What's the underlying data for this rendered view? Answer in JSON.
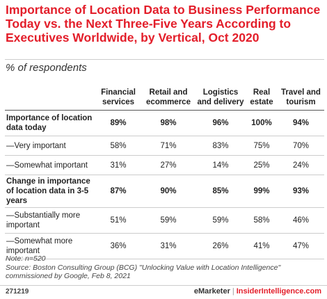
{
  "chart_data": {
    "type": "table",
    "title": "Importance of Location Data to Business Performance Today vs. the Next Three-Five Years According to Executives Worldwide, by Vertical, Oct 2020",
    "subtitle": "% of respondents",
    "columns": [
      "Financial services",
      "Retail and ecommerce",
      "Logistics and delivery",
      "Real estate",
      "Travel and tourism"
    ],
    "rows": [
      {
        "label": "Importance of location data today",
        "values": [
          "89%",
          "98%",
          "96%",
          "100%",
          "94%"
        ],
        "emphasis": true
      },
      {
        "label": "—Very important",
        "values": [
          "58%",
          "71%",
          "83%",
          "75%",
          "70%"
        ],
        "emphasis": false
      },
      {
        "label": "—Somewhat important",
        "values": [
          "31%",
          "27%",
          "14%",
          "25%",
          "24%"
        ],
        "emphasis": false
      },
      {
        "label": "Change in importance of location data in 3-5 years",
        "values": [
          "87%",
          "90%",
          "85%",
          "99%",
          "93%"
        ],
        "emphasis": true
      },
      {
        "label": "—Substantially more important",
        "values": [
          "51%",
          "59%",
          "59%",
          "58%",
          "46%"
        ],
        "emphasis": false
      },
      {
        "label": "—Somewhat more important",
        "values": [
          "36%",
          "31%",
          "26%",
          "41%",
          "47%"
        ],
        "emphasis": false
      }
    ]
  },
  "notes": {
    "note": "Note: n=520",
    "source": "Source: Boston Consulting Group (BCG) \"Unlocking Value with Location Intelligence\" commissioned by Google, Feb 8, 2021"
  },
  "footer": {
    "id": "271219",
    "brand": "eMarketer",
    "separator": "|",
    "site": "InsiderIntelligence.com"
  },
  "colors": {
    "title": "#e31e2a",
    "brand_accent": "#e31e2a"
  }
}
